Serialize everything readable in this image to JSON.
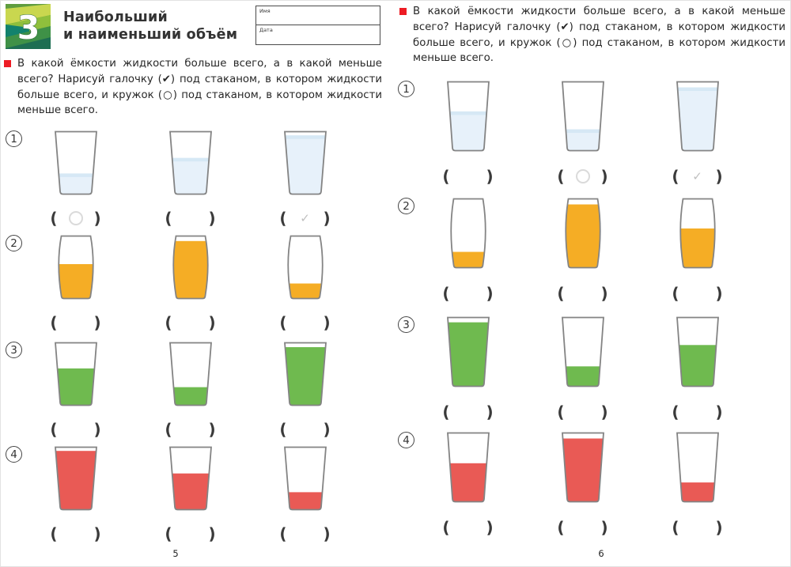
{
  "header": {
    "badge_number": "3",
    "title_line1": "Наибольший",
    "title_line2": "и наименьший объём",
    "name_label": "Имя",
    "date_label": "Дата"
  },
  "instruction_text": "В какой ёмкости жидкости больше всего, а в какой меньше всего? Нарисуй галочку (✔) под стаканом, в котором жидкости больше всего, и кружок (○) под стаканом, в котором жидкости меньше всего.",
  "colors": {
    "accent_red": "#ed1c24",
    "glass_outline": "#848484",
    "water_blue": "#e7f1fa",
    "water_surface": "#d6e8f5",
    "juice_orange": "#f5ad25",
    "juice_green": "#6fba4f",
    "juice_red": "#e95a55",
    "mark_gray": "#c9c9c9",
    "badge_greens": [
      "#c9d74f",
      "#8fbf3c",
      "#12826d",
      "#5f9c3f",
      "#1d6e52",
      "#3f9147"
    ]
  },
  "pages": [
    {
      "number": "5",
      "rows": [
        {
          "label": "1",
          "liquid": "water_blue",
          "shape": "straight",
          "glasses": [
            {
              "fill_percent": 33,
              "mark": "circle"
            },
            {
              "fill_percent": 58,
              "mark": "none"
            },
            {
              "fill_percent": 94,
              "mark": "check"
            }
          ]
        },
        {
          "label": "2",
          "liquid": "juice_orange",
          "shape": "curved",
          "glasses": [
            {
              "fill_percent": 55,
              "mark": "none"
            },
            {
              "fill_percent": 92,
              "mark": "none"
            },
            {
              "fill_percent": 24,
              "mark": "none"
            }
          ]
        },
        {
          "label": "3",
          "liquid": "juice_green",
          "shape": "straight",
          "glasses": [
            {
              "fill_percent": 59,
              "mark": "none"
            },
            {
              "fill_percent": 29,
              "mark": "none"
            },
            {
              "fill_percent": 93,
              "mark": "none"
            }
          ]
        },
        {
          "label": "4",
          "liquid": "juice_red",
          "shape": "straight",
          "glasses": [
            {
              "fill_percent": 94,
              "mark": "none"
            },
            {
              "fill_percent": 58,
              "mark": "none"
            },
            {
              "fill_percent": 28,
              "mark": "none"
            }
          ]
        }
      ]
    },
    {
      "number": "6",
      "rows": [
        {
          "label": "1",
          "liquid": "water_blue",
          "shape": "straight",
          "glasses": [
            {
              "fill_percent": 57,
              "mark": "none"
            },
            {
              "fill_percent": 31,
              "mark": "circle"
            },
            {
              "fill_percent": 92,
              "mark": "check"
            }
          ]
        },
        {
          "label": "2",
          "liquid": "juice_orange",
          "shape": "curved",
          "glasses": [
            {
              "fill_percent": 23,
              "mark": "none"
            },
            {
              "fill_percent": 92,
              "mark": "none"
            },
            {
              "fill_percent": 57,
              "mark": "none"
            }
          ]
        },
        {
          "label": "3",
          "liquid": "juice_green",
          "shape": "straight",
          "glasses": [
            {
              "fill_percent": 93,
              "mark": "none"
            },
            {
              "fill_percent": 29,
              "mark": "none"
            },
            {
              "fill_percent": 60,
              "mark": "none"
            }
          ]
        },
        {
          "label": "4",
          "liquid": "juice_red",
          "shape": "straight",
          "glasses": [
            {
              "fill_percent": 56,
              "mark": "none"
            },
            {
              "fill_percent": 92,
              "mark": "none"
            },
            {
              "fill_percent": 28,
              "mark": "none"
            }
          ]
        }
      ]
    }
  ]
}
